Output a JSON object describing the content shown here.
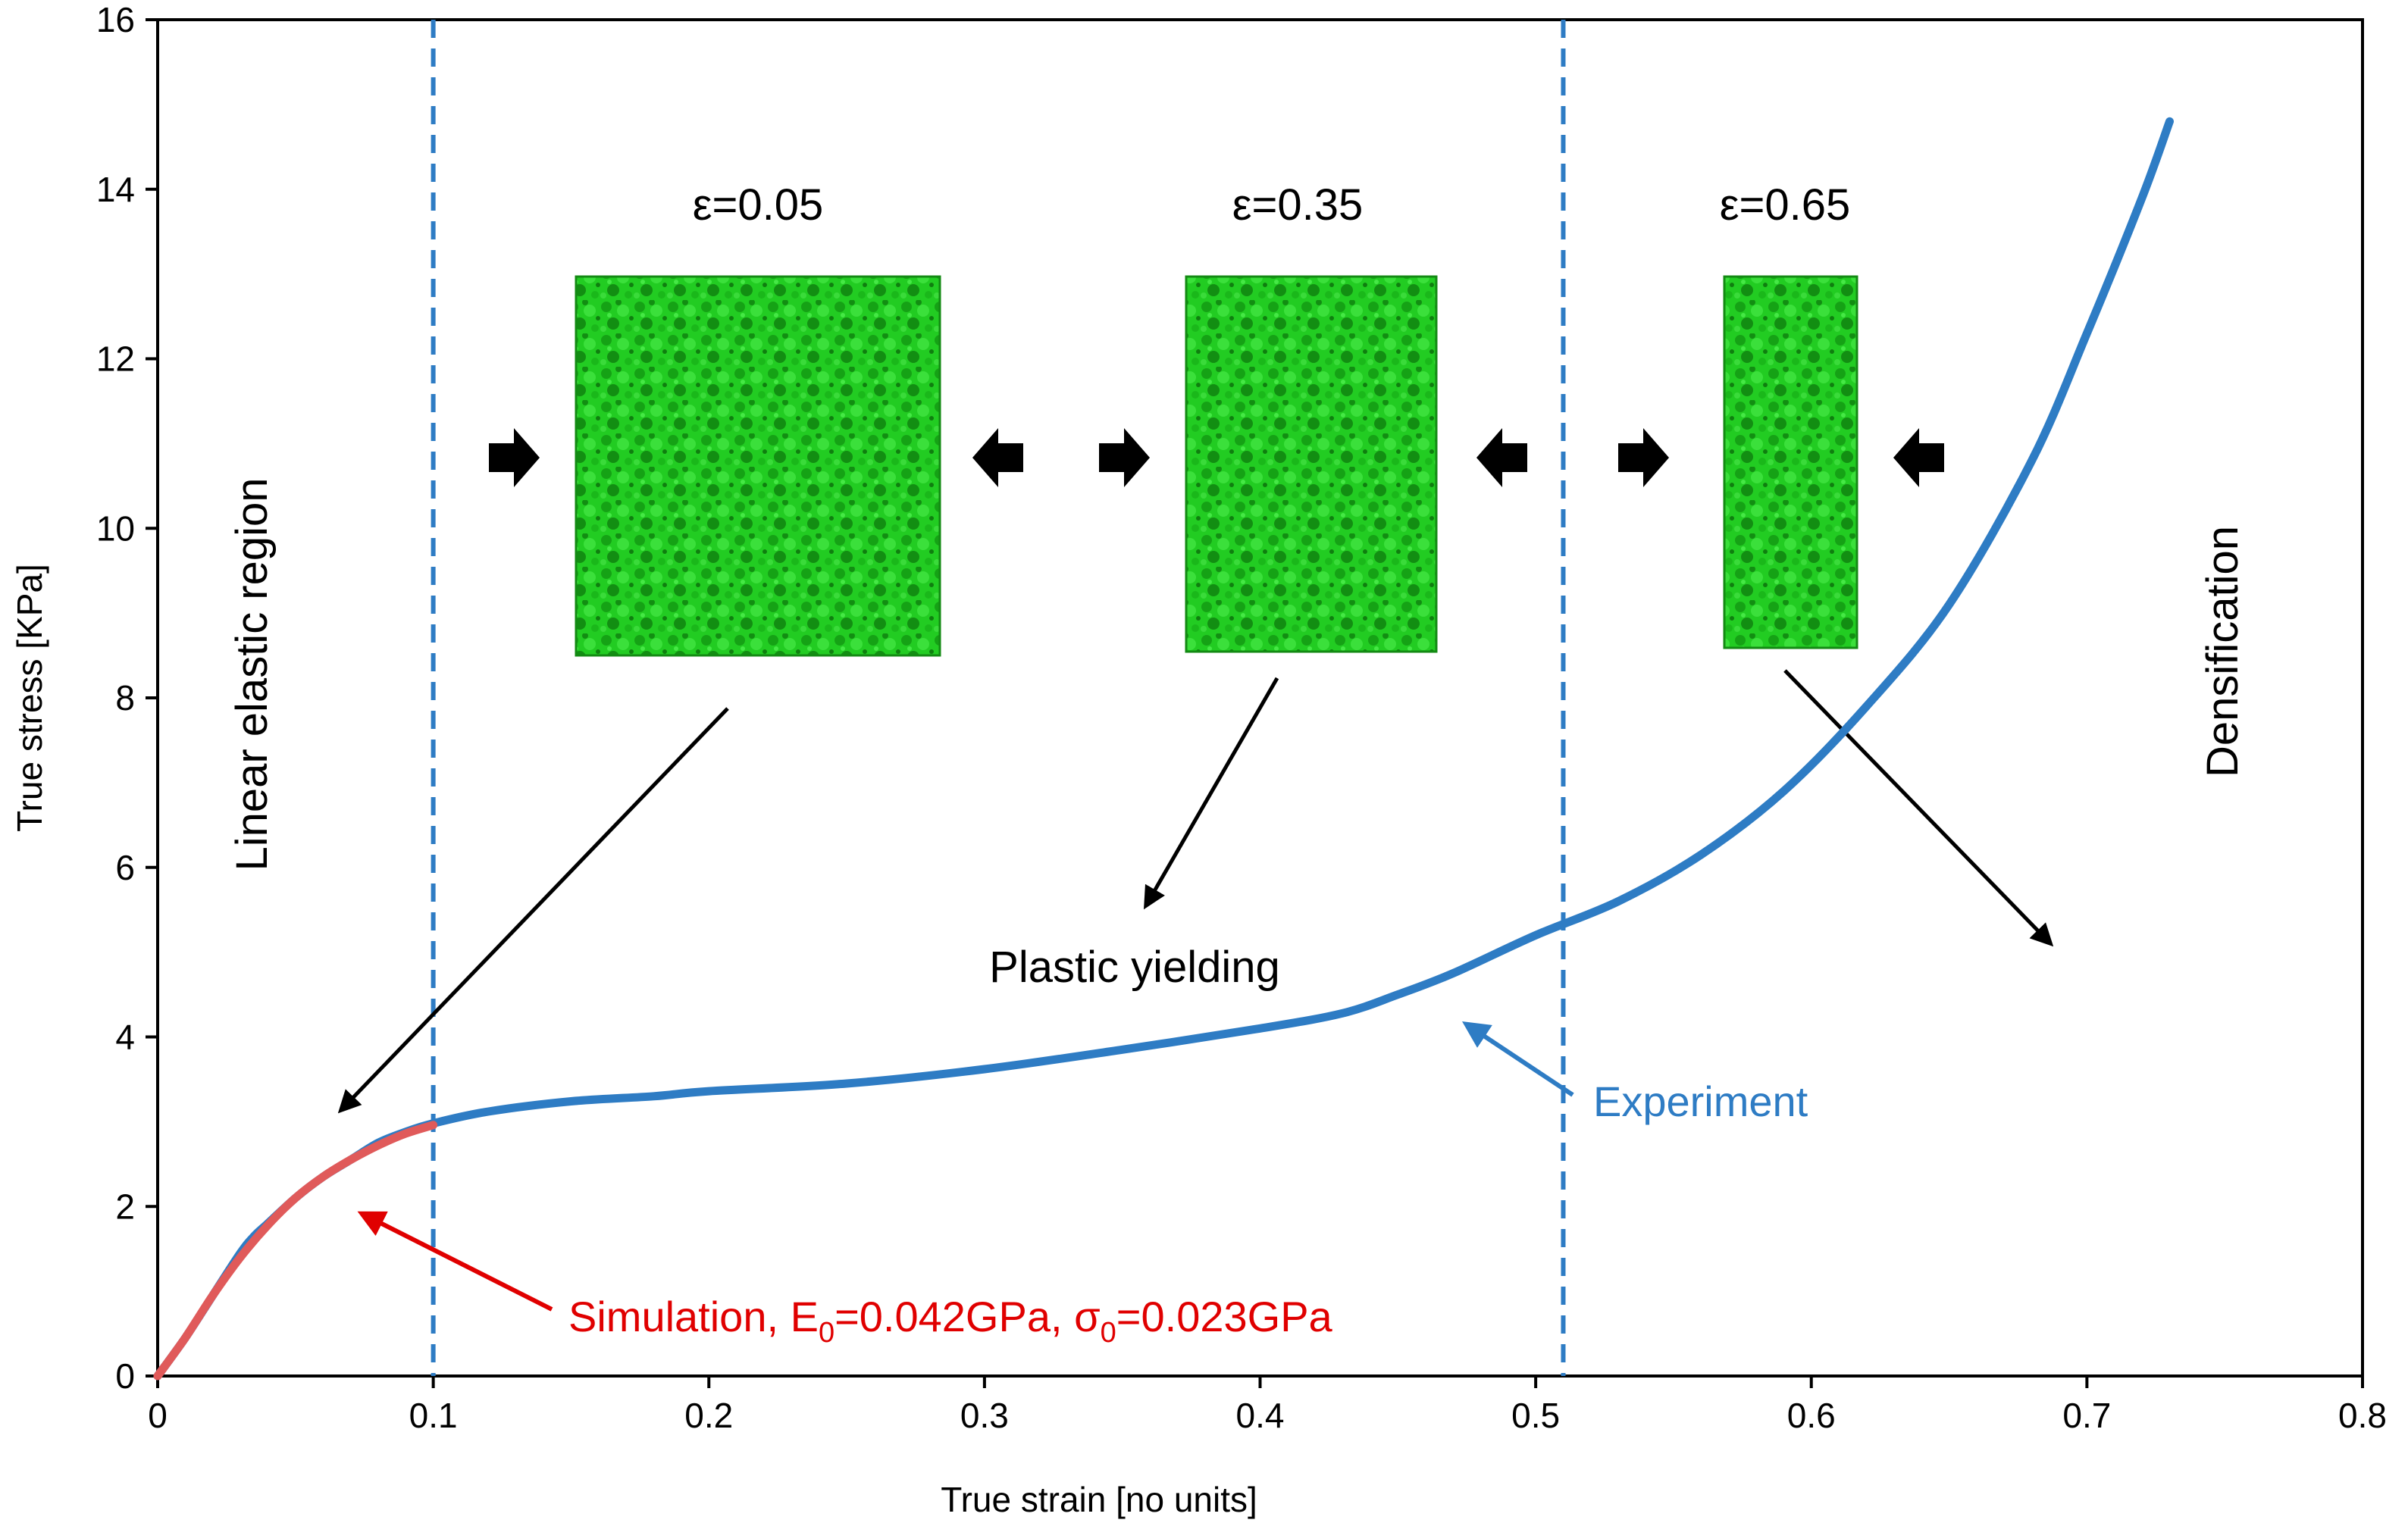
{
  "chart_data": {
    "type": "line",
    "xlabel": "True strain [no units]",
    "ylabel": "True stress [KPa]",
    "xlim": [
      0,
      0.8
    ],
    "ylim": [
      0,
      16
    ],
    "xticks": [
      "0",
      "0.1",
      "0.2",
      "0.3",
      "0.4",
      "0.5",
      "0.6",
      "0.7",
      "0.8"
    ],
    "yticks": [
      "0",
      "2",
      "4",
      "6",
      "8",
      "10",
      "12",
      "14",
      "16"
    ],
    "grid": false,
    "series": [
      {
        "name": "Experiment",
        "color": "#2E7CC4",
        "x": [
          0,
          0.01,
          0.02,
          0.03,
          0.035,
          0.04,
          0.05,
          0.06,
          0.07,
          0.08,
          0.09,
          0.1,
          0.12,
          0.15,
          0.18,
          0.2,
          0.25,
          0.3,
          0.35,
          0.4,
          0.43,
          0.45,
          0.47,
          0.5,
          0.53,
          0.56,
          0.59,
          0.62,
          0.65,
          0.68,
          0.7,
          0.72,
          0.73
        ],
        "y": [
          0,
          0.45,
          0.95,
          1.45,
          1.65,
          1.8,
          2.1,
          2.35,
          2.55,
          2.75,
          2.88,
          2.98,
          3.12,
          3.24,
          3.3,
          3.36,
          3.45,
          3.62,
          3.85,
          4.1,
          4.28,
          4.5,
          4.75,
          5.2,
          5.6,
          6.15,
          6.9,
          7.9,
          9.1,
          10.8,
          12.3,
          13.9,
          14.8
        ]
      },
      {
        "name": "Simulation, E0=0.042GPa, σ0=0.023GPa",
        "color": "#E05A5A",
        "x": [
          0,
          0.01,
          0.02,
          0.03,
          0.04,
          0.05,
          0.06,
          0.07,
          0.08,
          0.09,
          0.1
        ],
        "y": [
          0,
          0.45,
          0.95,
          1.4,
          1.78,
          2.1,
          2.35,
          2.55,
          2.72,
          2.86,
          2.96
        ]
      }
    ],
    "vlines": [
      0.1,
      0.51
    ],
    "region_labels": {
      "elastic": "Linear elastic region",
      "plastic": "Plastic yielding",
      "densification": "Densification"
    },
    "snapshots": [
      {
        "label": "ε=0.05",
        "strain": 0.05
      },
      {
        "label": "ε=0.35",
        "strain": 0.35
      },
      {
        "label": "ε=0.65",
        "strain": 0.65
      }
    ],
    "annotations": {
      "experiment": "Experiment",
      "simulation_prefix": "Simulation, E",
      "simulation_sub1": "0",
      "simulation_mid": "=0.042GPa, σ",
      "simulation_sub2": "0",
      "simulation_suffix": "=0.023GPa"
    },
    "colors": {
      "experiment": "#2E7CC4",
      "simulation": "#E05A5A",
      "simulation_text": "#E00000",
      "sample": "#22CC22",
      "sample_dark": "#138A13",
      "arrow": "#000000",
      "dashed": "#2E7CC4"
    }
  }
}
